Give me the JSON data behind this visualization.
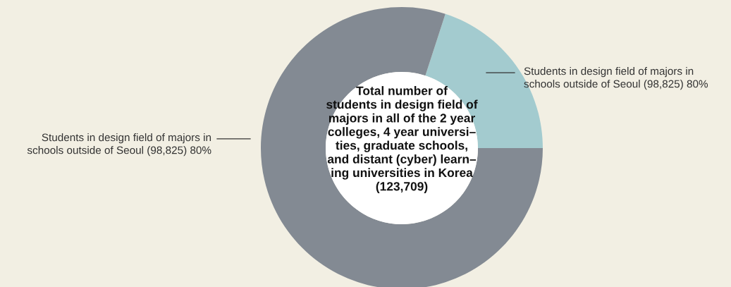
{
  "chart_data": {
    "type": "donut",
    "categories": [
      "Students in design field of majors in\nschools outside of Seoul (98,825) 80%",
      "Students in design field of majors in\nschools outside of Seoul (98,825) 80%"
    ],
    "values": [
      20,
      80
    ],
    "colors": [
      "#a3cbcf",
      "#838a93"
    ],
    "annotations": [
      "Total number of\nstudents in design field of\nmajors in all of the 2 year\ncolleges, 4 year universi–\nties, graduate schools,\nand distant (cyber) learn–\ning universities in Korea\n(123,709)"
    ],
    "legend": false
  }
}
